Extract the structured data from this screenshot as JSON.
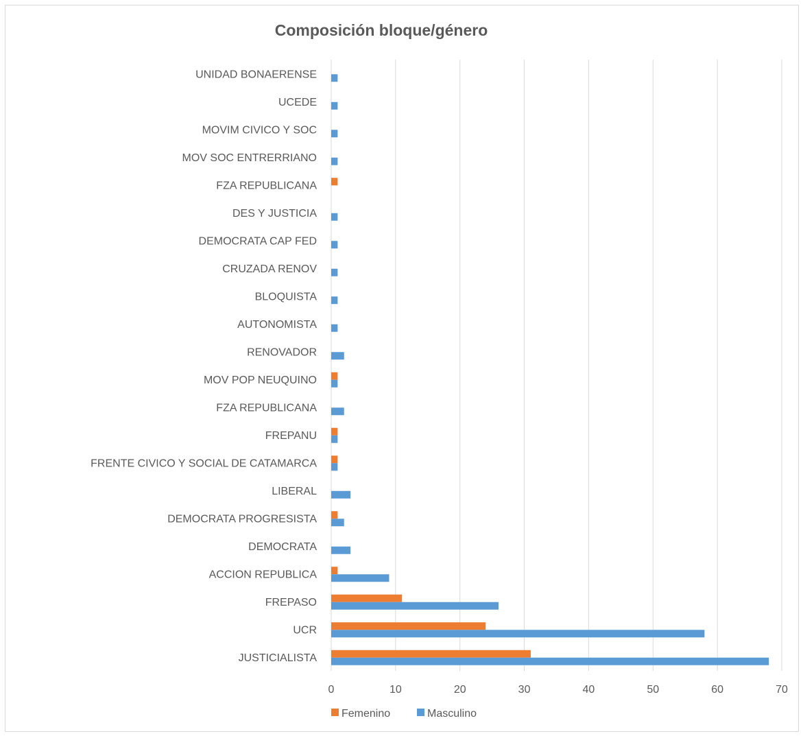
{
  "chart_data": {
    "type": "bar",
    "orientation": "horizontal",
    "title": "Composición bloque/género",
    "categories": [
      "JUSTICIALISTA",
      "UCR",
      "FREPASO",
      "ACCION REPUBLICA",
      "DEMOCRATA",
      "DEMOCRATA PROGRESISTA",
      "LIBERAL",
      "FRENTE CIVICO Y SOCIAL DE CATAMARCA",
      "FREPANU",
      "FZA REPUBLICANA",
      "MOV POP NEUQUINO",
      "RENOVADOR",
      "AUTONOMISTA",
      "BLOQUISTA",
      "CRUZADA RENOV",
      "DEMOCRATA CAP FED",
      "DES Y JUSTICIA",
      "FZA REPUBLICANA",
      "MOV SOC ENTRERRIANO",
      "MOVIM CIVICO Y SOC",
      "UCEDE",
      "UNIDAD BONAERENSE"
    ],
    "series": [
      {
        "name": "Femenino",
        "color": "#ed7d31",
        "values": [
          31,
          24,
          11,
          1,
          0,
          1,
          0,
          1,
          1,
          0,
          1,
          0,
          0,
          0,
          0,
          0,
          0,
          1,
          0,
          0,
          0,
          0
        ]
      },
      {
        "name": "Masculino",
        "color": "#5b9bd5",
        "values": [
          68,
          58,
          26,
          9,
          3,
          2,
          3,
          1,
          1,
          2,
          1,
          2,
          1,
          1,
          1,
          1,
          1,
          0,
          1,
          1,
          1,
          1
        ]
      }
    ],
    "xlim": [
      0,
      70
    ],
    "xticks": [
      0,
      10,
      20,
      30,
      40,
      50,
      60,
      70
    ],
    "grid": true,
    "legend_position": "bottom",
    "gridline_color": "#d9d9d9"
  }
}
